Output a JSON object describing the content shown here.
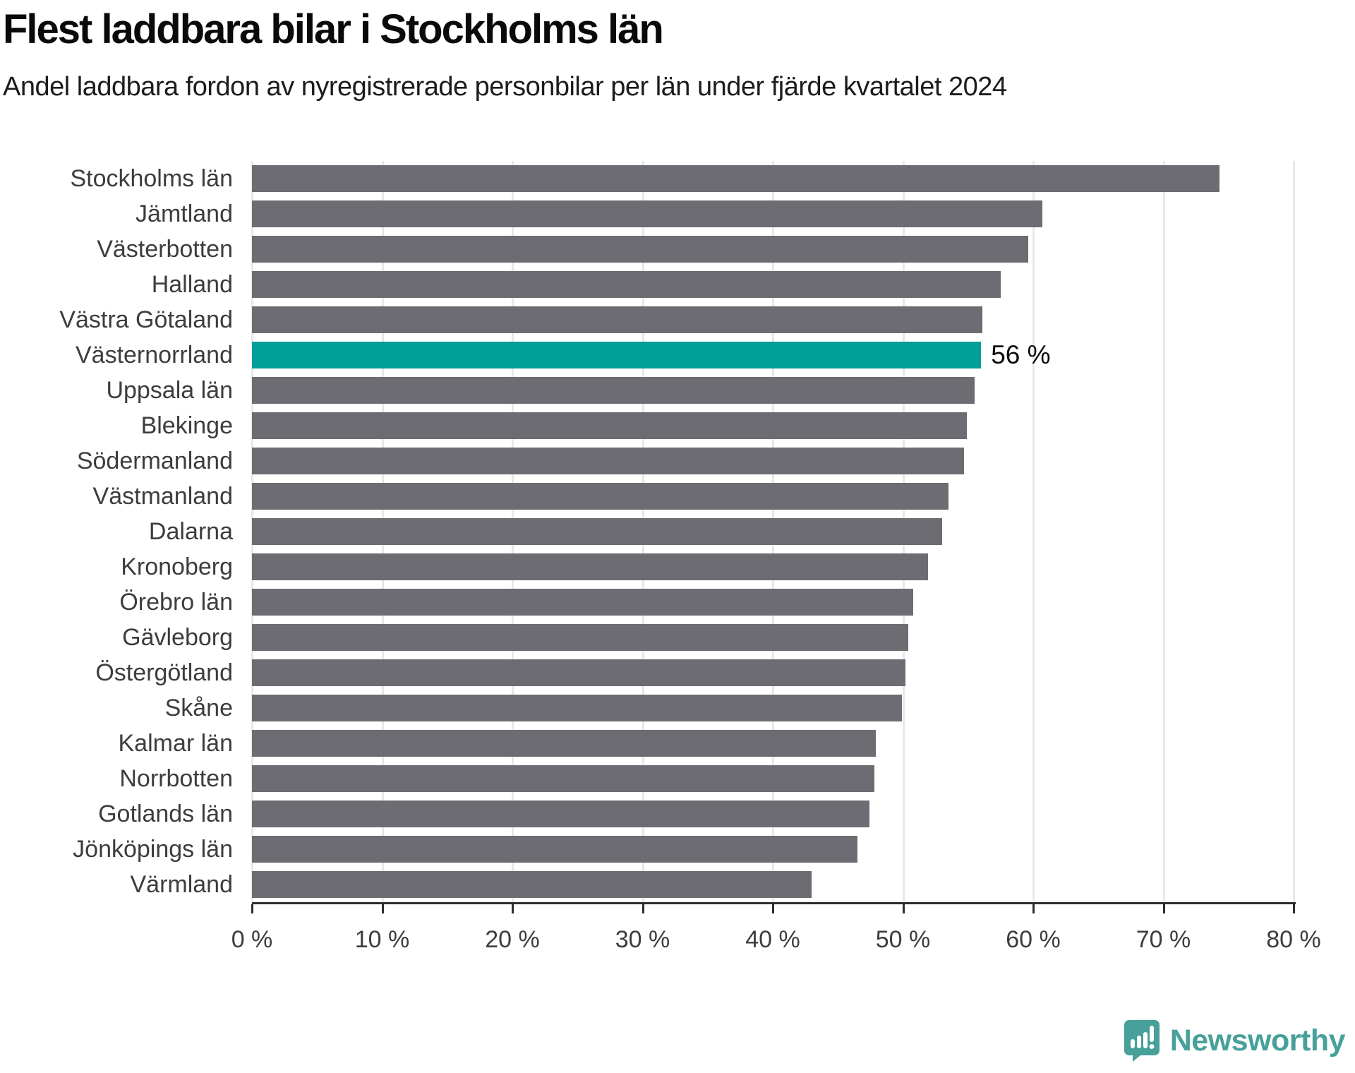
{
  "header": {
    "title": "Flest laddbara bilar i Stockholms län",
    "subtitle": "Andel laddbara fordon av nyregistrerade personbilar per län under fjärde kvartalet 2024"
  },
  "chart_data": {
    "type": "bar",
    "orientation": "horizontal",
    "title": "Flest laddbara bilar i Stockholms län",
    "subtitle": "Andel laddbara fordon av nyregistrerade personbilar per län under fjärde kvartalet 2024",
    "categories": [
      "Stockholms län",
      "Jämtland",
      "Västerbotten",
      "Halland",
      "Västra Götaland",
      "Västernorrland",
      "Uppsala län",
      "Blekinge",
      "Södermanland",
      "Västmanland",
      "Dalarna",
      "Kronoberg",
      "Örebro län",
      "Gävleborg",
      "Östergötland",
      "Skåne",
      "Kalmar län",
      "Norrbotten",
      "Gotlands län",
      "Jönköpings län",
      "Värmland"
    ],
    "values": [
      74.3,
      60.7,
      59.6,
      57.5,
      56.1,
      56.0,
      55.5,
      54.9,
      54.7,
      53.5,
      53.0,
      51.9,
      50.8,
      50.4,
      50.2,
      49.9,
      47.9,
      47.8,
      47.4,
      46.5,
      43.0
    ],
    "unit": "%",
    "xlim": [
      0,
      80
    ],
    "x_ticks": [
      0,
      10,
      20,
      30,
      40,
      50,
      60,
      70,
      80
    ],
    "x_tick_labels": [
      "0 %",
      "10 %",
      "20 %",
      "30 %",
      "40 %",
      "50 %",
      "60 %",
      "70 %",
      "80 %"
    ],
    "grid": true,
    "bar_color": "#6c6c72",
    "gridline_color": "#e8e8e8",
    "highlight": {
      "category": "Västernorrland",
      "index": 5,
      "value": 56.0,
      "label": "56 %",
      "color": "#009e96"
    }
  },
  "branding": {
    "name": "Newsworthy",
    "icon": "newsworthy-chart-bubble-logo",
    "color": "#47a09a"
  }
}
